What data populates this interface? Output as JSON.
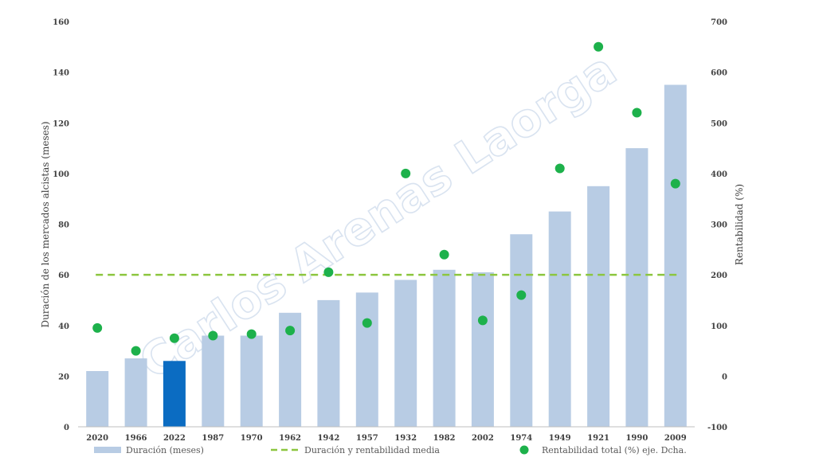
{
  "chart_data": {
    "type": "bar",
    "categories": [
      "2020",
      "1966",
      "2022",
      "1987",
      "1970",
      "1962",
      "1942",
      "1957",
      "1932",
      "1982",
      "2002",
      "1974",
      "1949",
      "1921",
      "1990",
      "2009"
    ],
    "series": [
      {
        "name": "Duración (meses)",
        "type": "bar",
        "axis": "left",
        "values": [
          22,
          27,
          26,
          36,
          36,
          45,
          50,
          53,
          58,
          62,
          61,
          76,
          85,
          95,
          110,
          135
        ],
        "color": "#b8cce4",
        "highlight": {
          "category": "2022",
          "color": "#0b6cc2"
        }
      },
      {
        "name": "Duración y rentabilidad media",
        "type": "line",
        "style": "dashed",
        "axis": "left",
        "value": 60,
        "color": "#8cc63f"
      },
      {
        "name": "Rentabilidad total (%) eje. Dcha.",
        "type": "scatter",
        "axis": "right",
        "values": [
          95,
          50,
          75,
          80,
          83,
          90,
          205,
          105,
          400,
          240,
          110,
          160,
          410,
          650,
          520,
          380
        ],
        "color": "#1db14b"
      }
    ],
    "ylabel": "Duración de los mercados alcistas (meses)",
    "y2label": "Rentabilidad (%)",
    "ylim": [
      0,
      160
    ],
    "y2lim": [
      -100,
      700
    ],
    "yticks": [
      "0",
      "20",
      "40",
      "60",
      "80",
      "100",
      "120",
      "140",
      "160"
    ],
    "y2ticks": [
      "-100",
      "0",
      "100",
      "200",
      "300",
      "400",
      "500",
      "600",
      "700"
    ],
    "watermark": "Carlos Arenas Laorga",
    "legend_position": "bottom",
    "grid": false
  }
}
